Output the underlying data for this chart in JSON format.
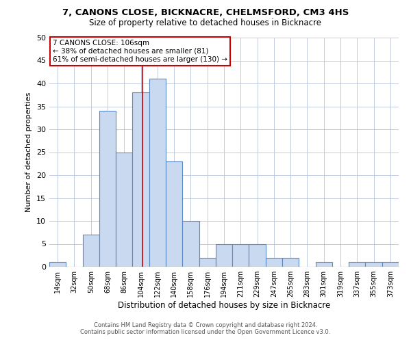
{
  "title1": "7, CANONS CLOSE, BICKNACRE, CHELMSFORD, CM3 4HS",
  "title2": "Size of property relative to detached houses in Bicknacre",
  "xlabel": "Distribution of detached houses by size in Bicknacre",
  "ylabel": "Number of detached properties",
  "bar_labels": [
    "14sqm",
    "32sqm",
    "50sqm",
    "68sqm",
    "86sqm",
    "104sqm",
    "122sqm",
    "140sqm",
    "158sqm",
    "176sqm",
    "194sqm",
    "211sqm",
    "229sqm",
    "247sqm",
    "265sqm",
    "283sqm",
    "301sqm",
    "319sqm",
    "337sqm",
    "355sqm",
    "373sqm"
  ],
  "bar_values": [
    1,
    0,
    7,
    34,
    25,
    38,
    41,
    23,
    10,
    2,
    5,
    5,
    5,
    2,
    2,
    0,
    1,
    0,
    1,
    1,
    1
  ],
  "bar_color": "#c9d9f0",
  "bar_edge_color": "#5a8ac6",
  "annotation_line1": "7 CANONS CLOSE: 106sqm",
  "annotation_line2": "← 38% of detached houses are smaller (81)",
  "annotation_line3": "61% of semi-detached houses are larger (130) →",
  "vline_color": "#cc0000",
  "annotation_box_color": "#ffffff",
  "annotation_box_edge": "#cc0000",
  "background_color": "#ffffff",
  "grid_color": "#c0ccdd",
  "ylim": [
    0,
    50
  ],
  "yticks": [
    0,
    5,
    10,
    15,
    20,
    25,
    30,
    35,
    40,
    45,
    50
  ],
  "footer1": "Contains HM Land Registry data © Crown copyright and database right 2024.",
  "footer2": "Contains public sector information licensed under the Open Government Licence v3.0."
}
